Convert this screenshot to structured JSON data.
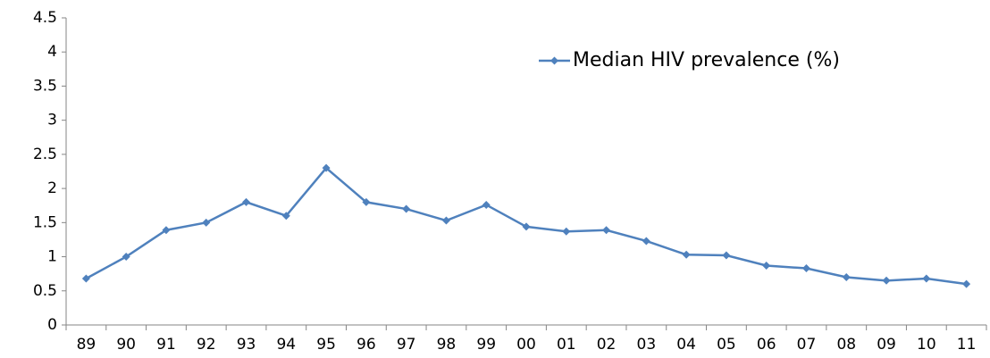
{
  "chart_data": {
    "type": "line",
    "categories": [
      "89",
      "90",
      "91",
      "92",
      "93",
      "94",
      "95",
      "96",
      "97",
      "98",
      "99",
      "00",
      "01",
      "02",
      "03",
      "04",
      "05",
      "06",
      "07",
      "08",
      "09",
      "10",
      "11"
    ],
    "series": [
      {
        "name": "Median HIV prevalence (%)",
        "color": "#4f81bd",
        "values": [
          0.68,
          1.0,
          1.39,
          1.5,
          1.8,
          1.6,
          2.3,
          1.8,
          1.7,
          1.53,
          1.76,
          1.44,
          1.37,
          1.39,
          1.23,
          1.03,
          1.02,
          0.87,
          0.83,
          0.7,
          0.65,
          0.68,
          0.6
        ]
      }
    ],
    "ylim": [
      0,
      4.5
    ],
    "yticks": [
      0,
      0.5,
      1,
      1.5,
      2,
      2.5,
      3,
      3.5,
      4,
      4.5
    ],
    "grid": false,
    "legend": "upper right"
  }
}
